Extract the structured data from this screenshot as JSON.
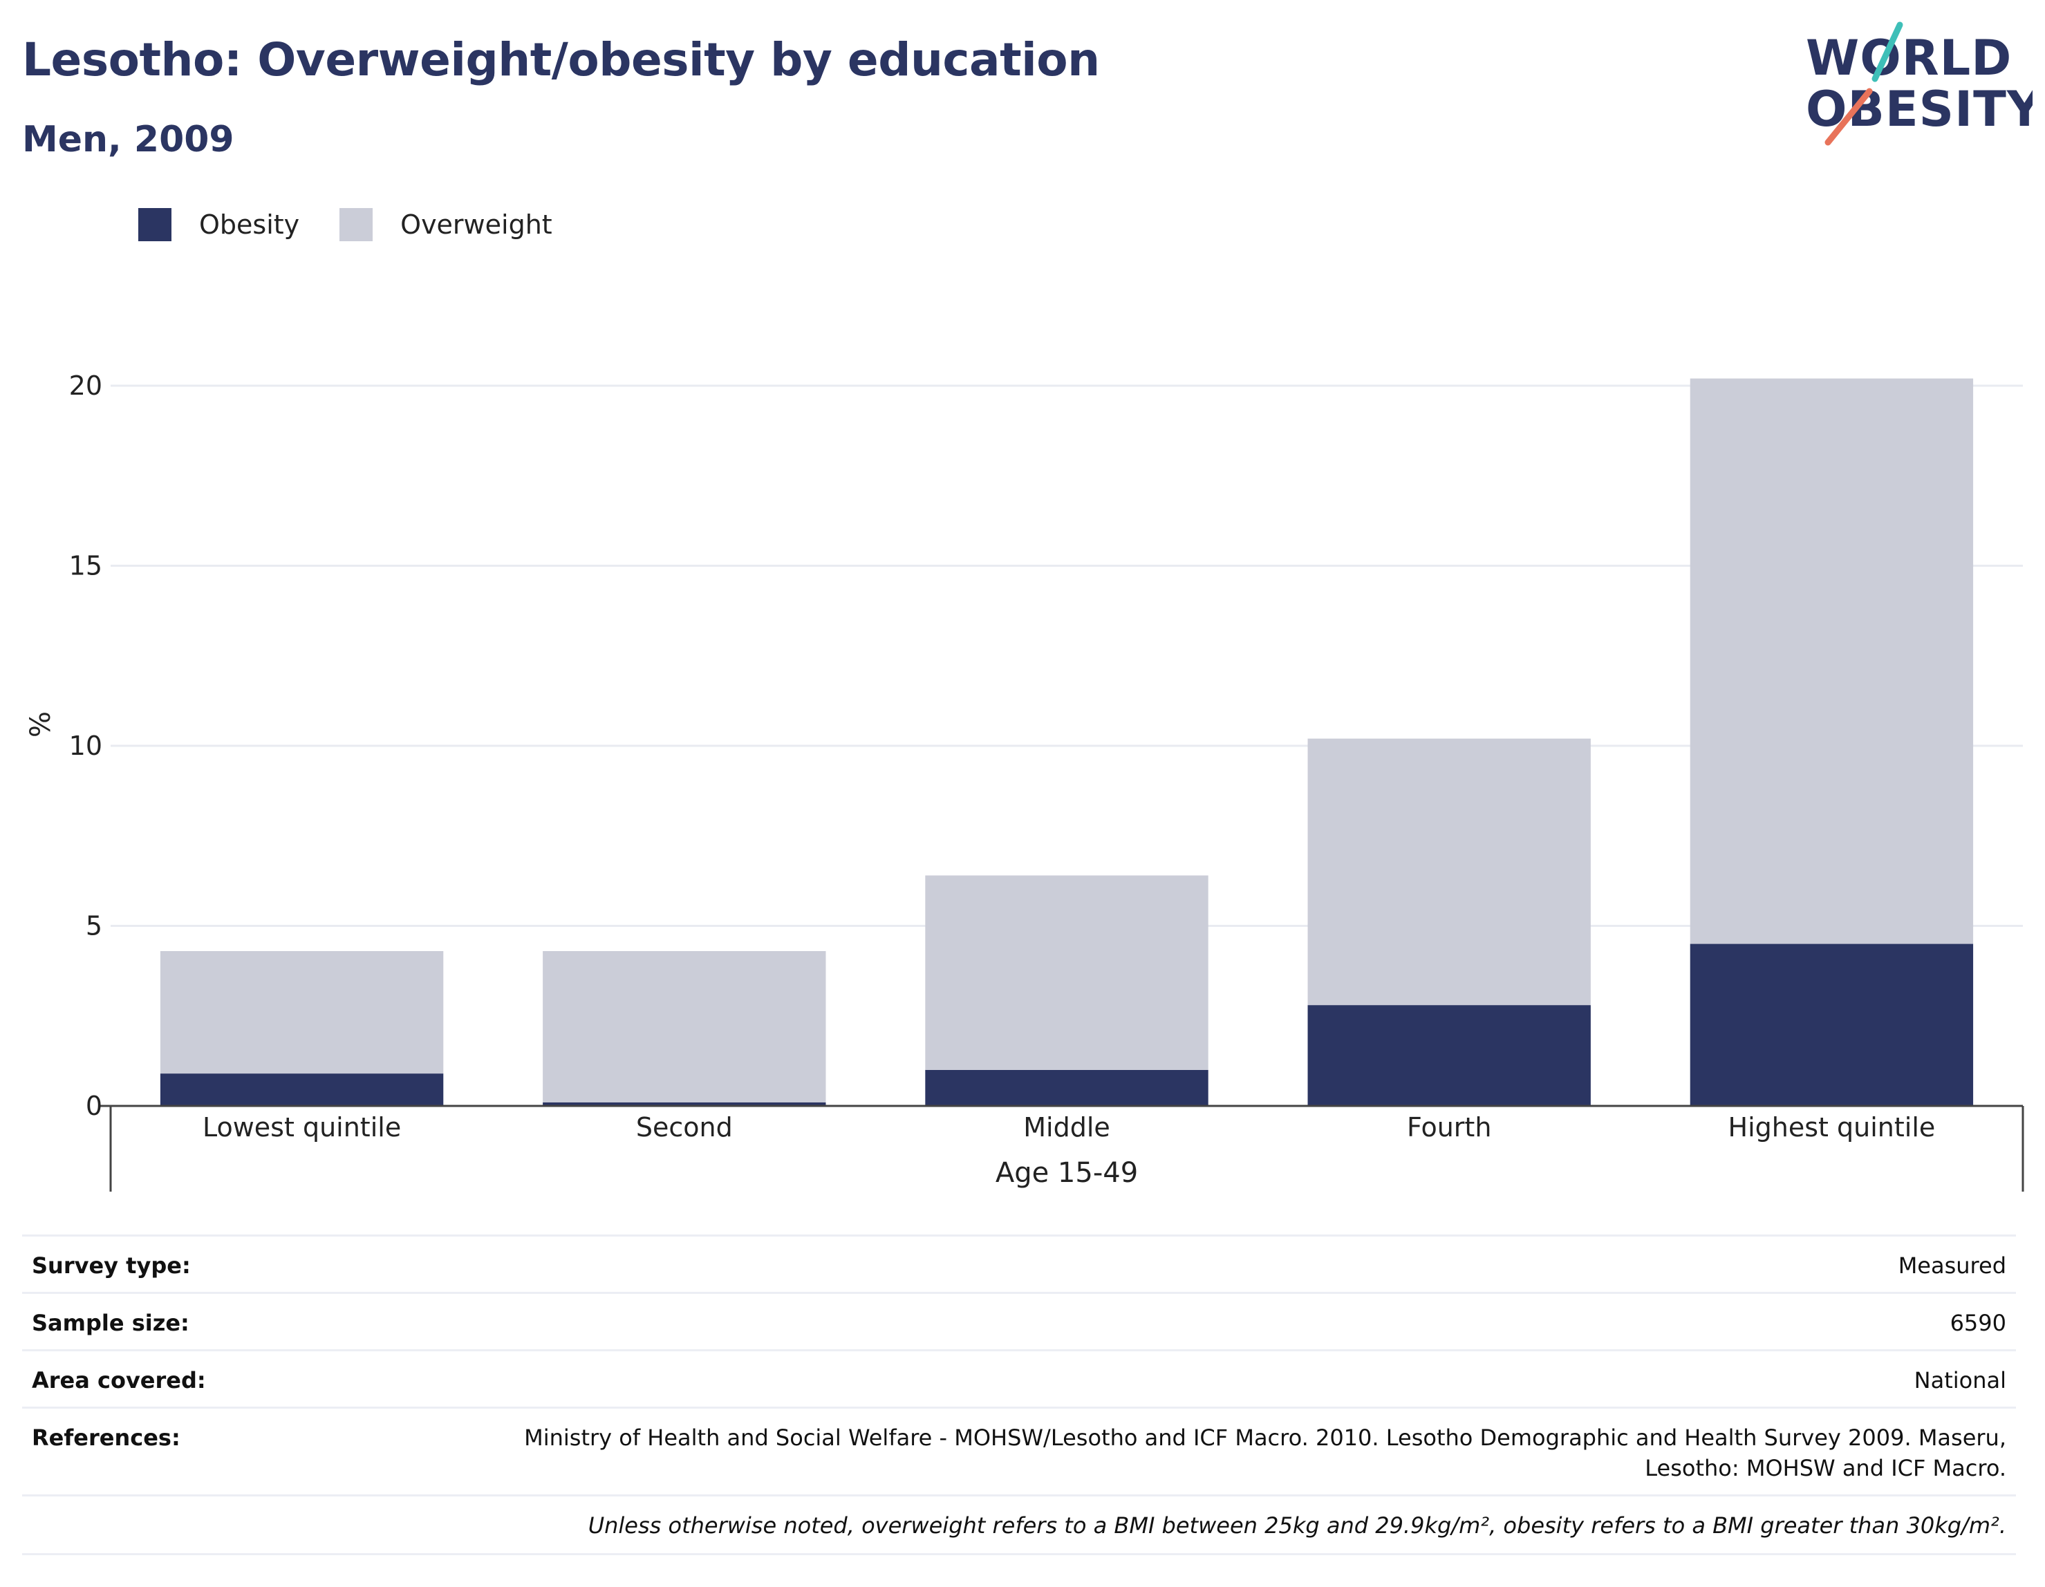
{
  "header": {
    "title": "Lesotho: Overweight/obesity by education",
    "subtitle": "Men, 2009"
  },
  "logo": {
    "line1": "WORLD",
    "line2": "OBESITY",
    "colors": {
      "text": "#2b3562",
      "slash_top": "#3ebfb8",
      "slash_bottom": "#e8735a"
    }
  },
  "legend": [
    {
      "label": "Obesity",
      "color": "#2b3562"
    },
    {
      "label": "Overweight",
      "color": "#cbcdd8"
    }
  ],
  "chart_data": {
    "type": "bar",
    "stacked": true,
    "categories": [
      "Lowest quintile",
      "Second",
      "Middle",
      "Fourth",
      "Highest quintile"
    ],
    "group_label": "Age 15-49",
    "series": [
      {
        "name": "Obesity",
        "color": "#2b3562",
        "values": [
          0.9,
          0.1,
          1.0,
          2.8,
          4.5
        ]
      },
      {
        "name": "Overweight",
        "color": "#cbcdd8",
        "values": [
          3.4,
          4.2,
          5.4,
          7.4,
          15.7
        ]
      }
    ],
    "ylabel": "%",
    "ylim": [
      0,
      20
    ],
    "yticks": [
      0,
      5,
      10,
      15,
      20
    ],
    "grid": true,
    "legend_position": "top-left"
  },
  "info": {
    "rows": [
      {
        "label": "Survey type:",
        "value": "Measured"
      },
      {
        "label": "Sample size:",
        "value": "6590"
      },
      {
        "label": "Area covered:",
        "value": "National"
      },
      {
        "label": "References:",
        "value": "Ministry of Health and Social Welfare - MOHSW/Lesotho and ICF Macro. 2010. Lesotho Demographic and Health Survey 2009. Maseru, Lesotho: MOHSW and ICF Macro."
      }
    ],
    "note": "Unless otherwise noted, overweight refers to a BMI between 25kg and 29.9kg/m², obesity refers to a BMI greater than 30kg/m²."
  }
}
